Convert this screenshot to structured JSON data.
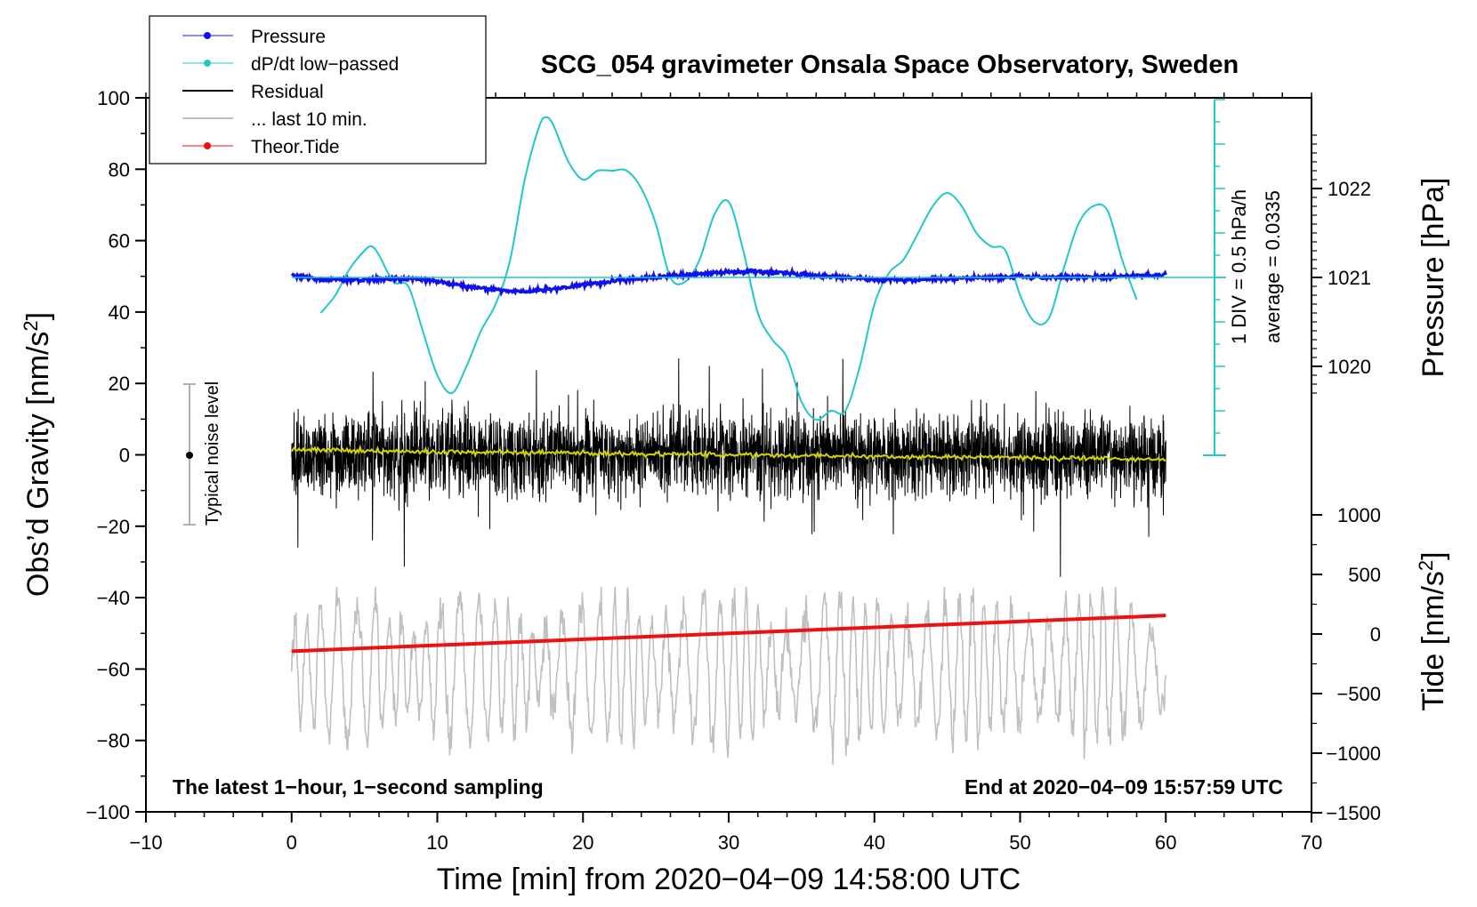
{
  "chart_data": {
    "type": "line",
    "title": "SCG_054 gravimeter Onsala Space Observatory, Sweden",
    "xlabel": "Time [min] from 2020−04−09 14:58:00 UTC",
    "ylabel_left": "Obs’d Gravity [nm/s²]",
    "ylabel_left_base": "Obs’d Gravity [nm/s",
    "ylabel_left_sup": "2",
    "ylabel_left_close": "]",
    "ylabel_right_pressure": "Pressure [hPa]",
    "ylabel_right_tide_base": "Tide [nm/s",
    "ylabel_right_tide_sup": "2",
    "ylabel_right_tide_close": "]",
    "xlim": [
      -10,
      70
    ],
    "ylim": [
      -100,
      100
    ],
    "x_ticks": [
      "−10",
      "0",
      "10",
      "20",
      "30",
      "40",
      "50",
      "60",
      "70"
    ],
    "y_ticks": [
      "100",
      "80",
      "60",
      "40",
      "20",
      "0",
      "−20",
      "−40",
      "−60",
      "−80",
      "−100"
    ],
    "pressure_ticks": [
      "1022",
      "1021",
      "1020"
    ],
    "tide_ticks": [
      "1000",
      "500",
      "0",
      "−500",
      "−1000",
      "−1500"
    ],
    "pressure_range_hpa": [
      1020,
      1022
    ],
    "tide_range": [
      -1500,
      1000
    ],
    "legend": [
      "Pressure",
      "dP/dt low−passed",
      "Residual",
      "... last 10 min.",
      "Theor.Tide"
    ],
    "annotations": {
      "bottom_left": "The latest 1−hour, 1−second sampling",
      "bottom_right": "End at 2020−04−09 15:57:59 UTC",
      "noise": "Typical noise level",
      "dpdt_scale": "1 DIV = 0.5 hPa/h",
      "dpdt_average": "average = 0.0335"
    },
    "series": [
      {
        "name": "Pressure",
        "color": "#1010ee",
        "unit": "hPa",
        "x": [
          0,
          2,
          4,
          6,
          8,
          10,
          12,
          14,
          16,
          18,
          20,
          22,
          24,
          26,
          28,
          30,
          32,
          34,
          36,
          38,
          40,
          42,
          44,
          46,
          48,
          50,
          52,
          54,
          56,
          58,
          60
        ],
        "values": [
          1021.02,
          1020.98,
          1020.97,
          1020.98,
          1020.99,
          1020.96,
          1020.9,
          1020.86,
          1020.84,
          1020.87,
          1020.92,
          1020.96,
          1020.99,
          1021.02,
          1021.04,
          1021.06,
          1021.07,
          1021.05,
          1021.02,
          1021.0,
          1020.98,
          1020.97,
          1020.98,
          1020.99,
          1021.0,
          1021.01,
          1021.0,
          1021.0,
          1021.01,
          1021.02,
          1021.03
        ]
      },
      {
        "name": "dP/dt low−passed",
        "color": "#20c8c8",
        "unit": "hPa/h",
        "x": [
          2,
          3,
          4,
          5,
          5.5,
          6,
          7,
          8,
          9,
          10,
          11,
          12,
          13,
          14,
          15,
          16,
          17,
          17.5,
          18,
          19,
          20,
          21,
          22,
          23,
          24,
          25,
          26,
          27,
          28,
          29,
          30,
          31,
          32,
          33,
          34,
          35,
          36,
          37,
          38,
          39,
          40,
          41,
          42,
          43,
          44,
          45,
          46,
          47,
          48,
          49,
          50,
          51,
          52,
          53,
          54,
          55,
          56,
          57,
          58
        ],
        "values": [
          -0.4,
          -0.2,
          0.1,
          0.3,
          0.35,
          0.25,
          -0.05,
          -0.1,
          -0.6,
          -1.1,
          -1.3,
          -1.0,
          -0.6,
          -0.3,
          0.2,
          1.1,
          1.7,
          1.8,
          1.7,
          1.3,
          1.1,
          1.2,
          1.2,
          1.2,
          1.0,
          0.6,
          0.0,
          -0.05,
          0.2,
          0.7,
          0.85,
          0.3,
          -0.4,
          -0.7,
          -0.9,
          -1.4,
          -1.6,
          -1.5,
          -1.5,
          -1.0,
          -0.3,
          0.05,
          0.2,
          0.5,
          0.8,
          0.95,
          0.8,
          0.5,
          0.35,
          0.3,
          -0.2,
          -0.5,
          -0.45,
          0.1,
          0.6,
          0.8,
          0.75,
          0.2,
          -0.25
        ]
      },
      {
        "name": "Residual",
        "color": "#000000",
        "unit": "nm/s²",
        "x_range": [
          0,
          60
        ],
        "envelope": [
          -35,
          38
        ],
        "typical_amplitude": 15
      },
      {
        "name": "... last 10 min.",
        "color": "#c0c0c0",
        "unit": "nm/s²",
        "x_range": [
          0,
          60
        ],
        "offset": -60,
        "envelope": [
          -88,
          -37
        ]
      },
      {
        "name": "Residual mean",
        "color": "#d4d400",
        "unit": "nm/s²",
        "x": [
          0,
          10,
          20,
          30,
          40,
          50,
          60
        ],
        "values": [
          1.5,
          0.8,
          0.4,
          0.0,
          -0.4,
          -0.8,
          -1.2
        ]
      },
      {
        "name": "Theor.Tide",
        "color": "#ee1111",
        "unit": "nm/s²",
        "x": [
          0,
          60
        ],
        "values": [
          -55,
          -45
        ]
      }
    ]
  },
  "colors": {
    "pressure": "#1010ee",
    "dpdt": "#20c8c8",
    "residual": "#000000",
    "last10": "#c0c0c0",
    "tide": "#ee1111",
    "mean": "#d4d400",
    "noise_bar": "#b0b0b0"
  }
}
